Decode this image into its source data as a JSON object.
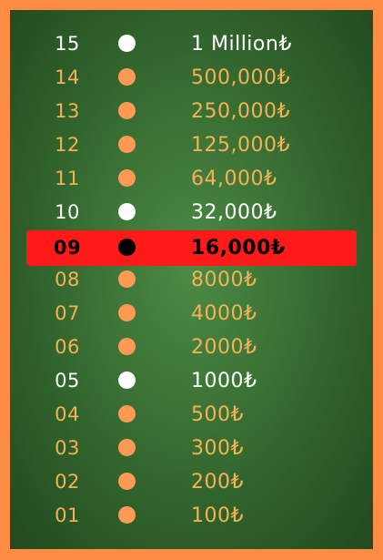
{
  "colors": {
    "frame": "#ff8c45",
    "board": "#3c7436",
    "safe_text": "#ffffff",
    "regular_text": "#f6b155",
    "regular_dot": "#ff9a55",
    "current_highlight": "#ff1a1a",
    "current_text": "#000000"
  },
  "ladder": [
    {
      "level": "15",
      "amount": "1 Million₺",
      "state": "white"
    },
    {
      "level": "14",
      "amount": "500,000₺",
      "state": "orange"
    },
    {
      "level": "13",
      "amount": "250,000₺",
      "state": "orange"
    },
    {
      "level": "12",
      "amount": "125,000₺",
      "state": "orange"
    },
    {
      "level": "11",
      "amount": "64,000₺",
      "state": "orange"
    },
    {
      "level": "10",
      "amount": "32,000₺",
      "state": "white"
    },
    {
      "level": "09",
      "amount": "16,000₺",
      "state": "current"
    },
    {
      "level": "08",
      "amount": "8000₺",
      "state": "orange"
    },
    {
      "level": "07",
      "amount": "4000₺",
      "state": "orange"
    },
    {
      "level": "06",
      "amount": "2000₺",
      "state": "orange"
    },
    {
      "level": "05",
      "amount": "1000₺",
      "state": "white"
    },
    {
      "level": "04",
      "amount": "500₺",
      "state": "orange"
    },
    {
      "level": "03",
      "amount": "300₺",
      "state": "orange"
    },
    {
      "level": "02",
      "amount": "200₺",
      "state": "orange"
    },
    {
      "level": "01",
      "amount": "100₺",
      "state": "orange"
    }
  ]
}
